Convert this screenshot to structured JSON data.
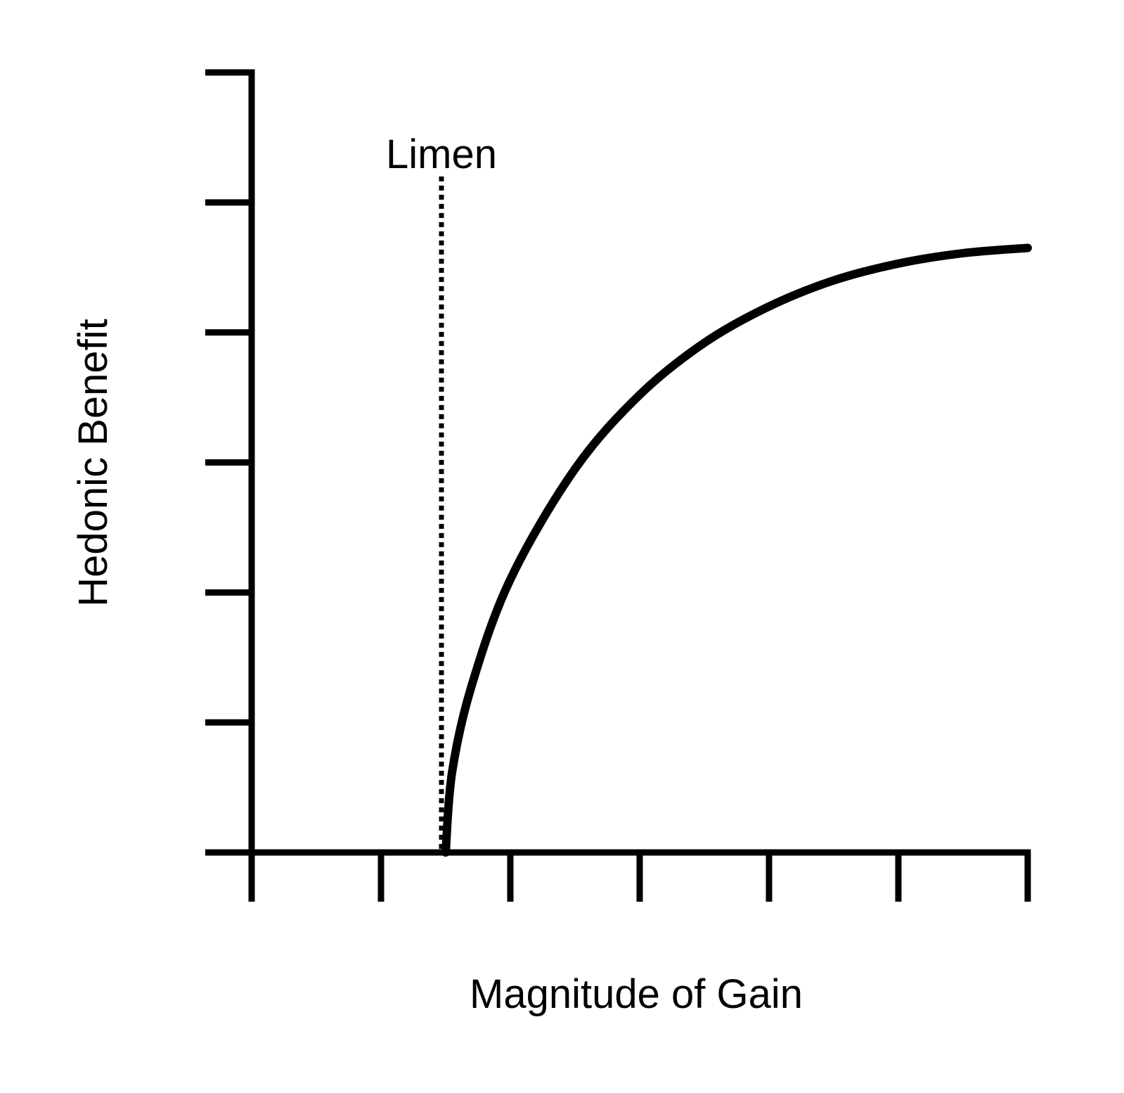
{
  "chart_data": {
    "type": "line",
    "title": "",
    "xlabel": "Magnitude of Gain",
    "ylabel": "Hedonic Benefit",
    "xlim": [
      0,
      6
    ],
    "ylim": [
      0,
      6
    ],
    "x_ticks": [
      0,
      1,
      2,
      3,
      4,
      5,
      6
    ],
    "y_ticks": [
      0,
      1,
      2,
      3,
      4,
      5,
      6
    ],
    "tick_labels_shown": false,
    "grid": false,
    "legend": "none",
    "series": [
      {
        "x": [
          1.5,
          1.55,
          1.7,
          2.0,
          2.5,
          3.0,
          3.5,
          4.0,
          4.5,
          5.0,
          5.5,
          6.0
        ],
        "y": [
          0,
          0.62,
          1.28,
          2.1,
          2.95,
          3.52,
          3.92,
          4.2,
          4.4,
          4.53,
          4.61,
          4.65
        ]
      }
    ],
    "annotations": [
      {
        "type": "vline",
        "x": 1.5,
        "y_top": 5.2,
        "style": "dotted",
        "label": "Limen"
      }
    ]
  }
}
